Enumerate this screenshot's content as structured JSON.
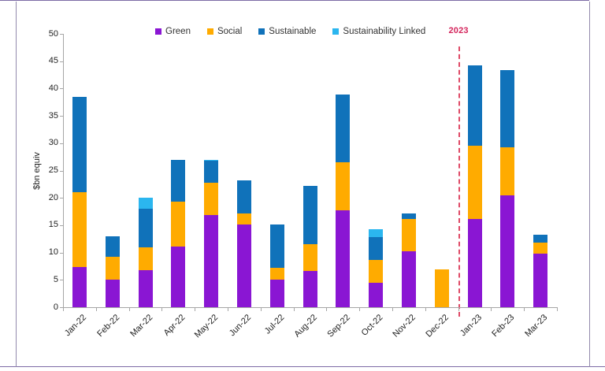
{
  "panel": {
    "background": "#ffffff",
    "frame_horizontal_color": "#7d6ba6",
    "frame_vertical_color": "#9289ac"
  },
  "axes": {
    "axis_color": "#a6a6a6",
    "tick_label_color": "#1f1f1f"
  },
  "legend": {
    "items": [
      {
        "label": "Green",
        "color": "#8a16d3"
      },
      {
        "label": "Social",
        "color": "#ffab00"
      },
      {
        "label": "Sustainable",
        "color": "#1072ba"
      },
      {
        "label": "Sustainability Linked",
        "color": "#2bb6ef"
      }
    ]
  },
  "chart_data": {
    "type": "bar",
    "stacked": true,
    "title": "",
    "xlabel": "",
    "ylabel": "$bn equiv",
    "ylim": [
      0,
      50
    ],
    "y_ticks": [
      0,
      5,
      10,
      15,
      20,
      25,
      30,
      35,
      40,
      45,
      50
    ],
    "grid": false,
    "legend_position": "top",
    "categories": [
      "Jan-22",
      "Feb-22",
      "Mar-22",
      "Apr-22",
      "May-22",
      "Jun-22",
      "Jul-22",
      "Aug-22",
      "Sep-22",
      "Oct-22",
      "Nov-22",
      "Dec-22",
      "Jan-23",
      "Feb-23",
      "Mar-23"
    ],
    "series": [
      {
        "name": "Green",
        "color": "#8a16d3",
        "values": [
          7.3,
          5.0,
          6.8,
          11.1,
          16.8,
          15.1,
          5.0,
          6.6,
          17.7,
          4.4,
          10.2,
          0,
          16.1,
          20.4,
          9.8
        ]
      },
      {
        "name": "Social",
        "color": "#ffab00",
        "values": [
          13.8,
          4.2,
          4.1,
          8.2,
          6.0,
          2.1,
          2.2,
          4.9,
          8.8,
          4.2,
          6.0,
          6.9,
          13.4,
          8.8,
          2.0
        ]
      },
      {
        "name": "Sustainable",
        "color": "#1072ba",
        "values": [
          17.4,
          3.8,
          7.1,
          7.6,
          4.0,
          6.0,
          7.9,
          10.7,
          12.4,
          4.2,
          0.9,
          0,
          14.7,
          14.2,
          1.5
        ]
      },
      {
        "name": "Sustainability Linked",
        "color": "#2bb6ef",
        "values": [
          0,
          0,
          2.0,
          0,
          0.2,
          0,
          0,
          0,
          0,
          1.5,
          0,
          0,
          0,
          0,
          0
        ]
      }
    ],
    "totals": [
      38.5,
      13.0,
      20.0,
      26.9,
      27.0,
      23.2,
      15.1,
      22.2,
      38.9,
      14.3,
      17.1,
      6.9,
      44.2,
      43.4,
      13.3
    ],
    "annotation_line": {
      "label": "2023",
      "label_color": "#d4255c",
      "line_color": "#df4a66",
      "position_between": [
        "Dec-22",
        "Jan-23"
      ]
    }
  }
}
